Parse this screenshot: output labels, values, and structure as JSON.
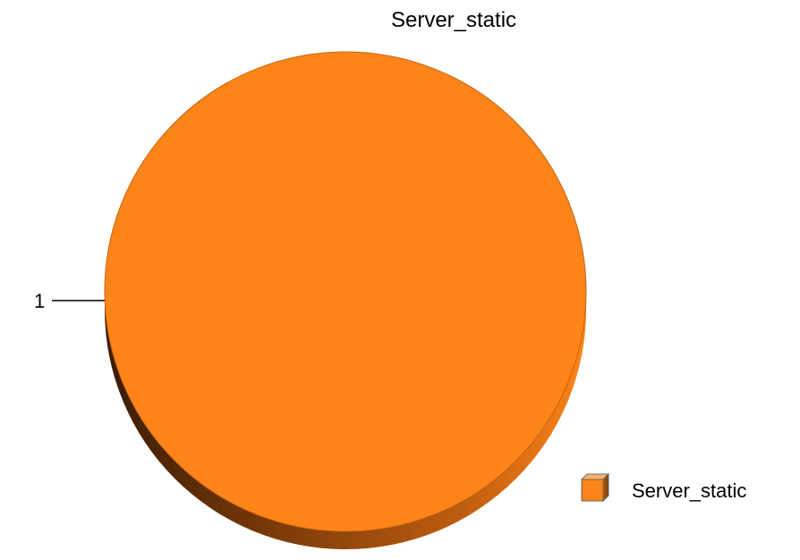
{
  "chart_data": {
    "type": "pie",
    "title": "Server_static",
    "categories": [
      "Server_static"
    ],
    "values": [
      1
    ],
    "slice_labels": [
      "1"
    ],
    "legend": {
      "position": "bottom-right",
      "entries": [
        "Server_static"
      ]
    },
    "style": "3d",
    "colors": [
      "#fd8418"
    ]
  }
}
